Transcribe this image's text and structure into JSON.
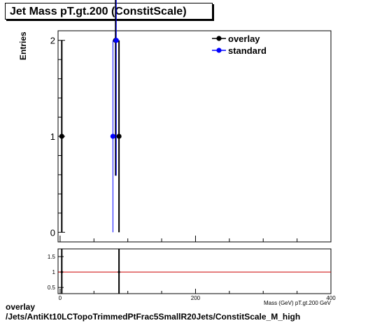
{
  "title": "Jet Mass pT.gt.200 (ConstitScale)",
  "caption_line1": "overlay",
  "caption_line2": "/Jets/AntiKt10LCTopoTrimmedPtFrac5SmallR20Jets/ConstitScale_M_high",
  "chart_data": [
    {
      "type": "scatter",
      "ylabel": "Entries",
      "xlabel": "",
      "xlim": [
        -3,
        400
      ],
      "ylim": [
        -0.1,
        2.1
      ],
      "yticks": [
        0,
        1,
        2
      ],
      "legend": "top-right",
      "series": [
        {
          "name": "overlay",
          "color": "#000000",
          "points": [
            {
              "x": 2.5,
              "y": 1,
              "err": 1
            },
            {
              "x": 82,
              "y": 2,
              "err": 1.41
            },
            {
              "x": 87,
              "y": 1,
              "err": 1
            }
          ]
        },
        {
          "name": "standard",
          "color": "#0000ff",
          "points": [
            {
              "x": 78,
              "y": 1,
              "err": 1
            },
            {
              "x": 83,
              "y": 2,
              "err": 1.41
            }
          ]
        }
      ]
    },
    {
      "type": "line",
      "xlabel": "Mass (GeV) pT.gt.200 GeV",
      "xlim": [
        -3,
        400
      ],
      "ylim": [
        0.3,
        1.75
      ],
      "yticks": [
        0.5,
        1,
        1.5
      ],
      "xticks": [
        0,
        200,
        400
      ],
      "reference_line": 1,
      "reference_color": "#cc0000",
      "ratio_points": [
        {
          "x": 2.5,
          "y": 1
        },
        {
          "x": 87,
          "y": 1
        }
      ],
      "ratio_bars_x": [
        2.5,
        87
      ]
    }
  ]
}
